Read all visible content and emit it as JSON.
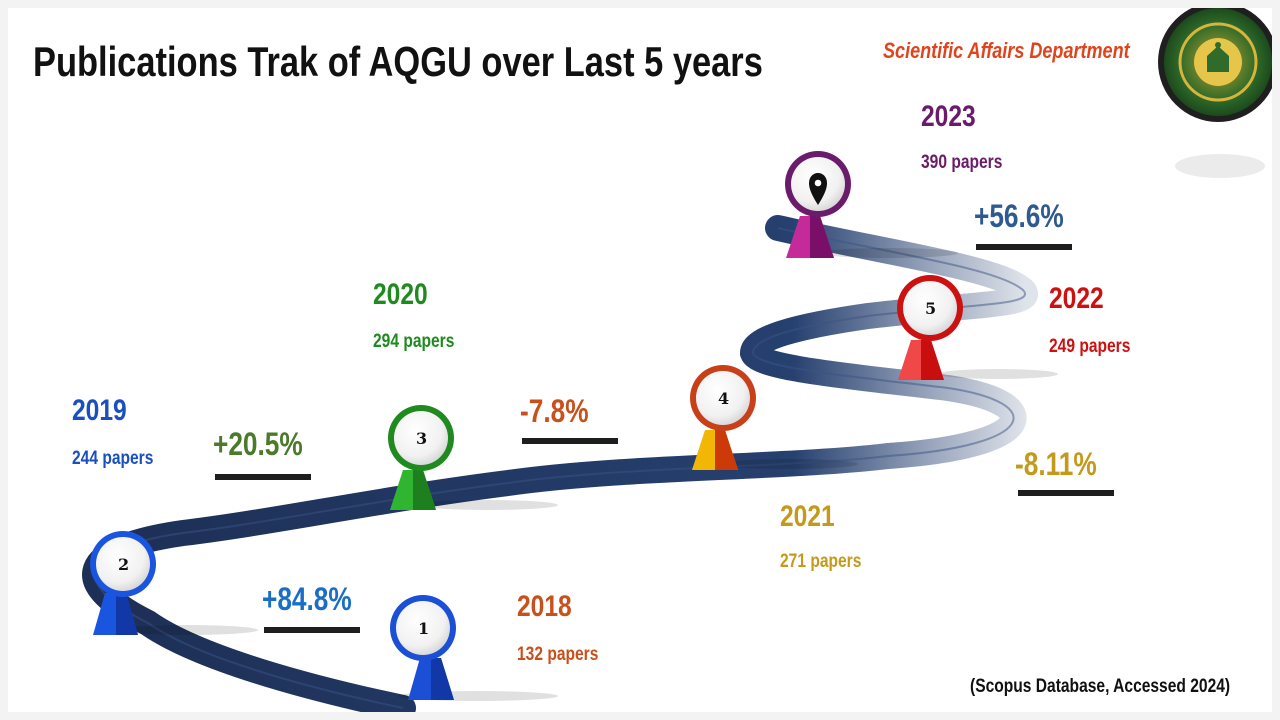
{
  "header": {
    "title": "Publications Trak of AQGU over Last 5 years",
    "department": "Scientific Affairs Department"
  },
  "milestones": [
    {
      "number": "1",
      "year": "2018",
      "papers": "132 papers",
      "color": "#c8501c",
      "pin_color": "#1a4fd6"
    },
    {
      "number": "2",
      "year": "2019",
      "papers": "244 papers",
      "color": "#1a4fbf",
      "pin_color": "#1a55e0"
    },
    {
      "number": "3",
      "year": "2020",
      "papers": "294 papers",
      "color": "#1f8a1f",
      "pin_color": "#2fb52f"
    },
    {
      "number": "4",
      "year": "2021",
      "papers": "271 papers",
      "color": "#c49a1a",
      "pin_color": "#f2b705"
    },
    {
      "number": "5",
      "year": "2022",
      "papers": "249 papers",
      "color": "#cc1111",
      "pin_color": "#f04848"
    },
    {
      "number": "",
      "year": "2023",
      "papers": "390 papers",
      "color": "#6a1b6a",
      "pin_color": "#b8218a"
    }
  ],
  "changes": [
    {
      "value": "+84.8%",
      "color": "#1a6fc4"
    },
    {
      "value": "+20.5%",
      "color": "#4a7a2a"
    },
    {
      "value": "-7.8%",
      "color": "#c8501c"
    },
    {
      "value": "-8.11%",
      "color": "#c49a1a"
    },
    {
      "value": "+56.6%",
      "color": "#2f5a8f"
    }
  ],
  "footer": {
    "source": "(Scopus Database, Accessed 2024)"
  },
  "icons": {
    "final_pin": "location-pin-icon",
    "logo": "university-seal-logo"
  }
}
